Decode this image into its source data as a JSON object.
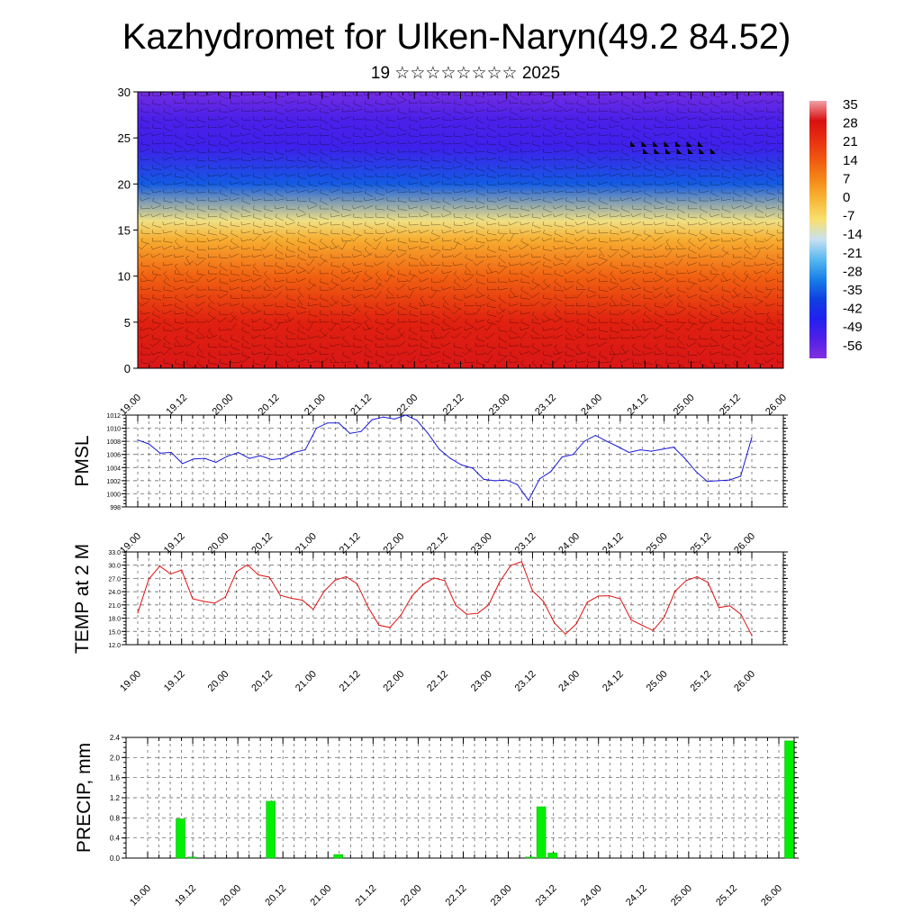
{
  "title": "Kazhydromet for Ulken-Naryn(49.2 84.52)",
  "subtitle": "19 ☆☆☆☆☆☆☆☆ 2025",
  "time_labels": [
    "19.00",
    "19.12",
    "20.00",
    "20.12",
    "21.00",
    "21.12",
    "22.00",
    "22.12",
    "23.00",
    "23.12",
    "24.00",
    "24.12",
    "25.00",
    "25.12",
    "26.00"
  ],
  "colors": {
    "pmsl_line": "#1a1adb",
    "temp_line": "#e01010",
    "precip_bar": "#00ee00",
    "grid": "#555555"
  },
  "chart_data": [
    {
      "type": "heatmap",
      "description_kind": "temperature cross-section with wind barbs",
      "ylim": [
        0,
        30
      ],
      "y_ticks": [
        "0",
        "5",
        "10",
        "15",
        "20",
        "25",
        "30"
      ],
      "x_ticks": [
        "19.00",
        "19.12",
        "20.00",
        "20.12",
        "21.00",
        "21.12",
        "22.00",
        "22.12",
        "23.00",
        "23.12",
        "24.00",
        "24.12",
        "25.00",
        "25.12",
        "26.00"
      ],
      "colorbar_labels": [
        "35",
        "28",
        "21",
        "14",
        "7",
        "0",
        "-7",
        "-14",
        "-21",
        "-28",
        "-35",
        "-42",
        "-49",
        "-56"
      ],
      "colorbar_stops": [
        "#f0a0a8",
        "#d81010",
        "#e83010",
        "#f05a10",
        "#f58a18",
        "#f8b838",
        "#f8e070",
        "#c8e0f0",
        "#58b8f0",
        "#1880e8",
        "#1040e0",
        "#2020f0",
        "#5020e8",
        "#8030e0"
      ],
      "value_profile": [
        {
          "level": 0,
          "value": 28
        },
        {
          "level": 5,
          "value": 24
        },
        {
          "level": 10,
          "value": 12
        },
        {
          "level": 14,
          "value": 0
        },
        {
          "level": 16,
          "value": -10
        },
        {
          "level": 20,
          "value": -35
        },
        {
          "level": 24,
          "value": -50
        },
        {
          "level": 27,
          "value": -52
        },
        {
          "level": 30,
          "value": -58
        }
      ]
    },
    {
      "type": "line",
      "ylabel": "PMSL",
      "ylim": [
        998,
        1012
      ],
      "y_ticks": [
        "998",
        "1000",
        "1002",
        "1004",
        "1006",
        "1008",
        "1010",
        "1012"
      ],
      "x_ticks": [
        "19.00",
        "19.12",
        "20.00",
        "20.12",
        "21.00",
        "21.12",
        "22.00",
        "22.12",
        "23.00",
        "23.12",
        "24.00",
        "24.12",
        "25.00",
        "25.12",
        "26.00"
      ],
      "values": [
        1008.2,
        1007.6,
        1006.2,
        1006.3,
        1004.6,
        1005.3,
        1005.4,
        1004.8,
        1005.7,
        1006.3,
        1005.4,
        1005.8,
        1005.2,
        1005.4,
        1006.3,
        1006.7,
        1010.0,
        1010.8,
        1010.8,
        1009.2,
        1009.5,
        1011.3,
        1011.7,
        1011.4,
        1012.0,
        1011.2,
        1009.2,
        1006.8,
        1005.4,
        1004.4,
        1003.9,
        1002.2,
        1002.0,
        1002.1,
        1001.4,
        999.0,
        1002.3,
        1003.4,
        1005.6,
        1006.0,
        1008.0,
        1008.9,
        1008.0,
        1007.2,
        1006.3,
        1006.7,
        1006.5,
        1006.8,
        1007.1,
        1005.4,
        1003.4,
        1001.9,
        1002.0,
        1002.1,
        1002.7,
        1008.6
      ]
    },
    {
      "type": "line",
      "ylabel": "TEMP at 2 M",
      "ylim": [
        12.0,
        33.0
      ],
      "y_ticks": [
        "12.0",
        "15.0",
        "18.0",
        "21.0",
        "24.0",
        "27.0",
        "30.0",
        "33.0"
      ],
      "x_ticks": [
        "19.00",
        "19.12",
        "20.00",
        "20.12",
        "21.00",
        "21.12",
        "22.00",
        "22.12",
        "23.00",
        "23.12",
        "24.00",
        "24.12",
        "25.00",
        "25.12",
        "26.00"
      ],
      "values": [
        19.2,
        26.8,
        29.8,
        28.0,
        28.9,
        22.4,
        21.8,
        21.4,
        22.8,
        28.5,
        30.1,
        27.8,
        27.3,
        23.2,
        22.5,
        22.1,
        20.0,
        24.1,
        26.6,
        27.4,
        25.8,
        20.5,
        16.4,
        15.9,
        18.7,
        23.0,
        25.6,
        27.1,
        26.5,
        20.9,
        18.9,
        19.1,
        21.0,
        26.2,
        29.9,
        30.8,
        24.2,
        21.8,
        16.9,
        14.4,
        16.7,
        21.6,
        23.0,
        23.1,
        22.4,
        17.6,
        16.4,
        15.2,
        18.2,
        24.1,
        26.5,
        27.4,
        26.1,
        20.4,
        20.8,
        18.9,
        14.1
      ]
    },
    {
      "type": "bar",
      "ylabel": "PRECIP, mm",
      "ylim": [
        0.0,
        2.4
      ],
      "y_ticks": [
        "0.0",
        "0.4",
        "0.8",
        "1.2",
        "1.6",
        "2.0",
        "2.4"
      ],
      "x_ticks": [
        "19.00",
        "19.12",
        "20.00",
        "20.12",
        "21.00",
        "21.12",
        "22.00",
        "22.12",
        "23.00",
        "23.12",
        "24.00",
        "24.12",
        "25.00",
        "25.12",
        "26.00"
      ],
      "x_step_hours": 3,
      "x": [
        3,
        6,
        27,
        45,
        96,
        99,
        102,
        165
      ],
      "values": [
        0.78,
        0.02,
        1.13,
        0.07,
        0.02,
        1.02,
        0.1,
        2.33
      ]
    }
  ]
}
